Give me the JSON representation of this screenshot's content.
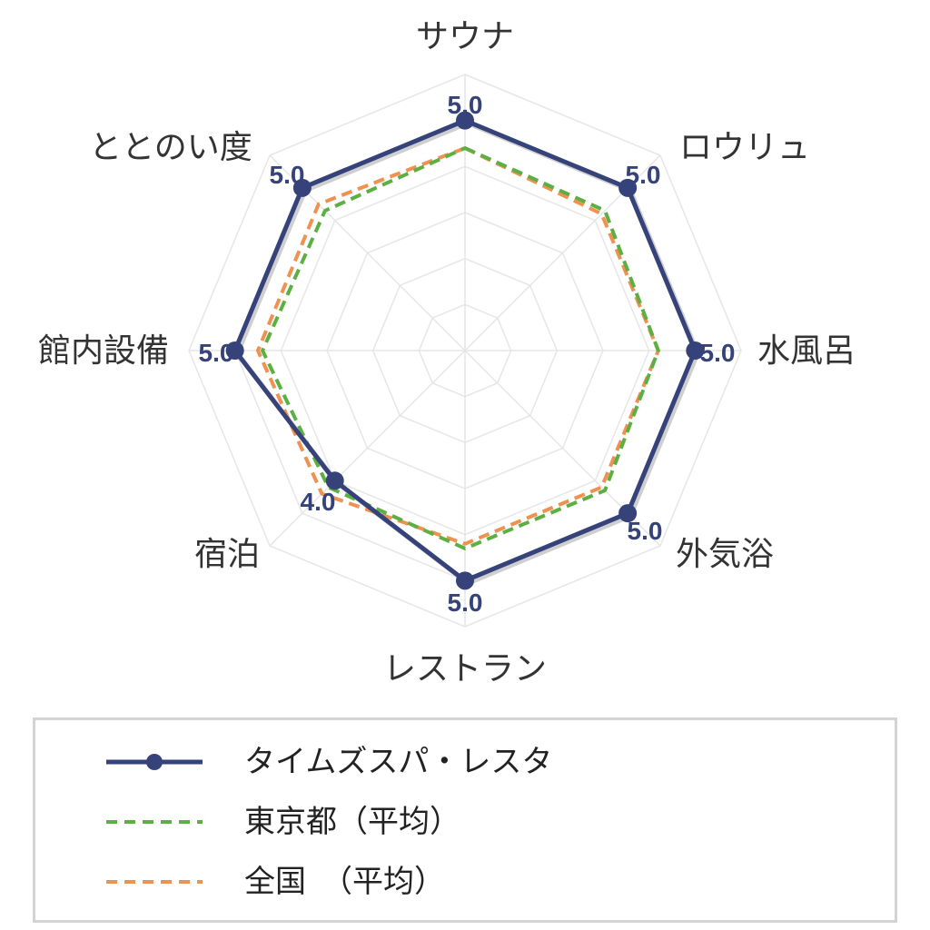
{
  "chart_data": {
    "type": "radar",
    "axes": [
      "サウナ",
      "ロウリュ",
      "水風呂",
      "外気浴",
      "レストラン",
      "宿泊",
      "館内設備",
      "ととのい度"
    ],
    "range": [
      0,
      6
    ],
    "grid_levels": 6,
    "series": [
      {
        "name": "タイムズスパ・レスタ",
        "values": [
          5.0,
          5.0,
          5.0,
          5.0,
          5.0,
          4.0,
          5.0,
          5.0
        ],
        "value_labels": [
          "5.0",
          "5.0",
          "5.0",
          "5.0",
          "5.0",
          "4.0",
          "5.0",
          "5.0"
        ],
        "color": "#36437a",
        "style": "solid-markers"
      },
      {
        "name": "東京都（平均）",
        "values": [
          4.4,
          4.3,
          4.2,
          4.3,
          4.3,
          4.2,
          4.4,
          4.3
        ],
        "color": "#5cb043",
        "style": "dashed"
      },
      {
        "name": "全国　（平均）",
        "values": [
          4.4,
          4.2,
          4.2,
          4.2,
          4.2,
          4.4,
          4.5,
          4.5
        ],
        "color": "#ef9150",
        "style": "dashed"
      }
    ]
  }
}
